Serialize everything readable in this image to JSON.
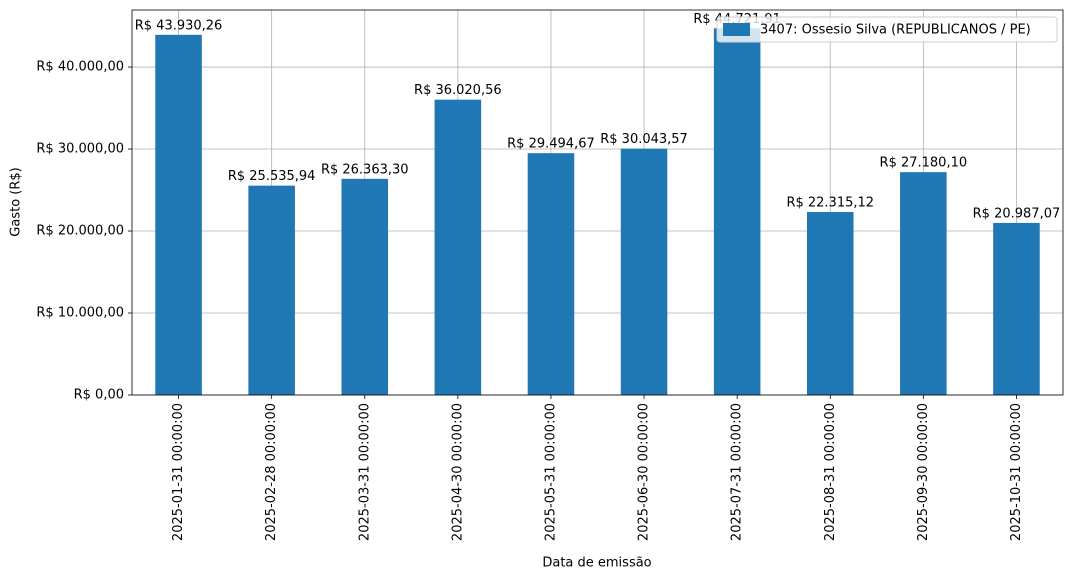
{
  "chart_data": {
    "type": "bar",
    "xlabel": "Data de emissão",
    "ylabel": "Gasto (R$)",
    "categories": [
      "2025-01-31 00:00:00",
      "2025-02-28 00:00:00",
      "2025-03-31 00:00:00",
      "2025-04-30 00:00:00",
      "2025-05-31 00:00:00",
      "2025-06-30 00:00:00",
      "2025-07-31 00:00:00",
      "2025-08-31 00:00:00",
      "2025-09-30 00:00:00",
      "2025-10-31 00:00:00"
    ],
    "series": [
      {
        "name": "3407: Ossesio Silva (REPUBLICANOS / PE)",
        "color": "#1f77b4",
        "values": [
          43930.26,
          25535.94,
          26363.3,
          36020.56,
          29494.67,
          30043.57,
          44721.91,
          22315.12,
          27180.1,
          20987.07
        ],
        "value_labels": [
          "R$ 43.930,26",
          "R$ 25.535,94",
          "R$ 26.363,30",
          "R$ 36.020,56",
          "R$ 29.494,67",
          "R$ 30.043,57",
          "R$ 44.721,91",
          "R$ 22.315,12",
          "R$ 27.180,10",
          "R$ 20.987,07"
        ]
      }
    ],
    "ylim": [
      0,
      46957
    ],
    "yticks": [
      {
        "value": 0,
        "label": "R$ 0,00"
      },
      {
        "value": 10000,
        "label": "R$ 10.000,00"
      },
      {
        "value": 20000,
        "label": "R$ 20.000,00"
      },
      {
        "value": 30000,
        "label": "R$ 30.000,00"
      },
      {
        "value": 40000,
        "label": "R$ 40.000,00"
      }
    ],
    "grid": true,
    "legend": "upper right"
  }
}
